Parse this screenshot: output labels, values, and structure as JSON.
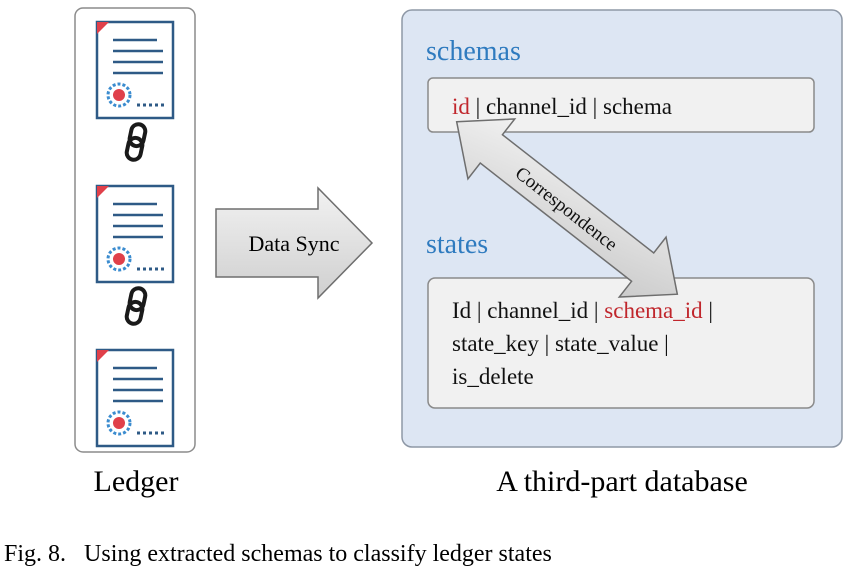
{
  "figure": {
    "caption": "Fig. 8.   Using extracted schemas to classify ledger states"
  },
  "ledger": {
    "label": "Ledger",
    "block_count": 3
  },
  "sync_arrow": {
    "label": "Data Sync"
  },
  "database": {
    "label": "A third-part database",
    "schemas": {
      "title": "schemas",
      "fields_highlight": "id",
      "fields_rest": " | channel_id | schema"
    },
    "states": {
      "title": "states",
      "line1_part1": "Id | channel_id | ",
      "line1_highlight": "schema_id",
      "line1_part2": " |",
      "line2": "state_key | state_value |",
      "line3": "is_delete"
    },
    "correspondence_label": "Correspondence"
  },
  "colors": {
    "accent_blue": "#2f7bbf",
    "key_red": "#c0262c",
    "db_background": "#dde6f3",
    "db_border": "#8e98a6",
    "doc_border": "#2e5a86",
    "doc_corner": "#e0404a",
    "badge_blue": "#3b8ccf"
  }
}
